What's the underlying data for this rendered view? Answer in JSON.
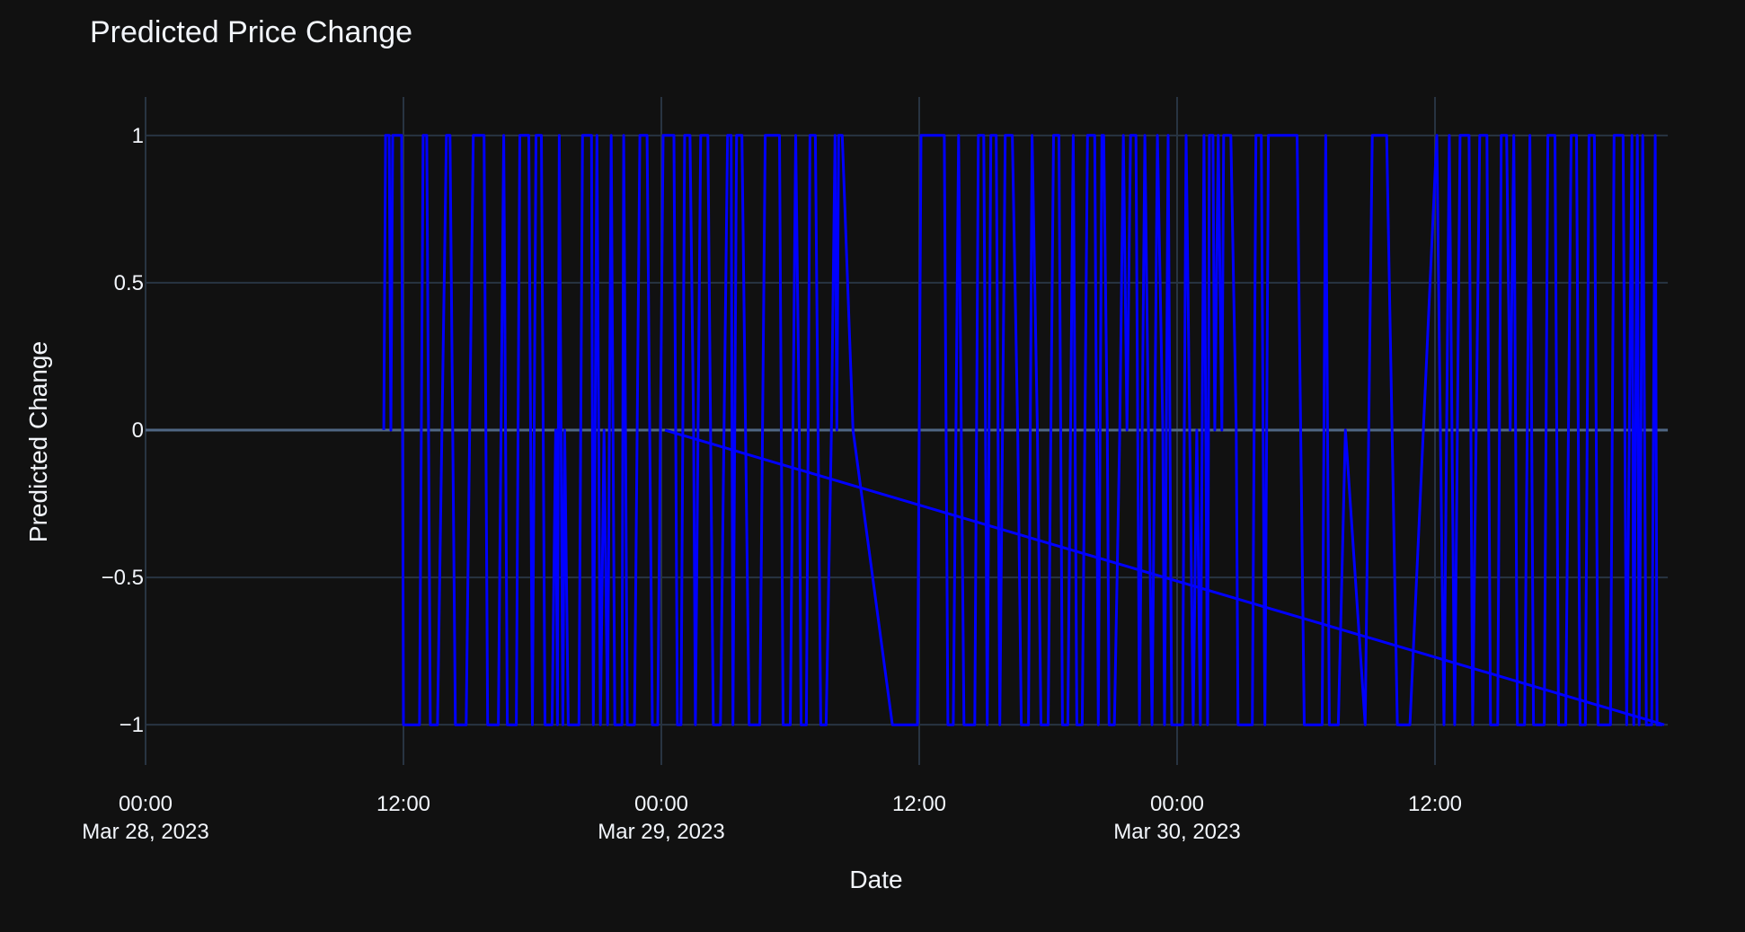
{
  "chart_data": {
    "type": "line",
    "title": "Predicted Price Change",
    "xlabel": "Date",
    "ylabel": "Predicted Change",
    "x_range": [
      "2023-03-28T00:00",
      "2023-03-30T22:45"
    ],
    "ylim": [
      -1.1,
      1.1
    ],
    "y_ticks": [
      {
        "value": 1,
        "label": "1"
      },
      {
        "value": 0.5,
        "label": "0.5"
      },
      {
        "value": 0,
        "label": "0"
      },
      {
        "value": -0.5,
        "label": "−0.5"
      },
      {
        "value": -1,
        "label": "−1"
      }
    ],
    "x_ticks": [
      {
        "value": "2023-03-28T00:00",
        "time": "00:00",
        "date": "Mar 28, 2023"
      },
      {
        "value": "2023-03-28T12:00",
        "time": "12:00",
        "date": ""
      },
      {
        "value": "2023-03-29T00:00",
        "time": "00:00",
        "date": "Mar 29, 2023"
      },
      {
        "value": "2023-03-29T12:00",
        "time": "12:00",
        "date": ""
      },
      {
        "value": "2023-03-30T00:00",
        "time": "00:00",
        "date": "Mar 30, 2023"
      },
      {
        "value": "2023-03-30T12:00",
        "time": "12:00",
        "date": ""
      }
    ],
    "grid": true,
    "series": [
      {
        "color": "#0000ff",
        "points": [
          [
            "2023-03-28T11:05",
            0
          ],
          [
            "2023-03-28T11:10",
            1
          ],
          [
            "2023-03-28T11:20",
            1
          ],
          [
            "2023-03-28T11:25",
            0
          ],
          [
            "2023-03-28T11:30",
            1
          ],
          [
            "2023-03-28T11:55",
            1
          ],
          [
            "2023-03-28T12:00",
            -1
          ],
          [
            "2023-03-28T12:45",
            -1
          ],
          [
            "2023-03-28T12:55",
            1
          ],
          [
            "2023-03-28T13:05",
            1
          ],
          [
            "2023-03-28T13:15",
            -1
          ],
          [
            "2023-03-28T13:35",
            -1
          ],
          [
            "2023-03-28T14:00",
            1
          ],
          [
            "2023-03-28T14:10",
            1
          ],
          [
            "2023-03-28T14:25",
            -1
          ],
          [
            "2023-03-28T14:55",
            -1
          ],
          [
            "2023-03-28T15:05",
            0
          ],
          [
            "2023-03-28T15:15",
            1
          ],
          [
            "2023-03-28T15:45",
            1
          ],
          [
            "2023-03-28T15:55",
            -1
          ],
          [
            "2023-03-28T16:25",
            -1
          ],
          [
            "2023-03-28T16:40",
            1
          ],
          [
            "2023-03-28T16:50",
            -1
          ],
          [
            "2023-03-28T17:15",
            -1
          ],
          [
            "2023-03-28T17:25",
            1
          ],
          [
            "2023-03-28T17:50",
            1
          ],
          [
            "2023-03-28T18:00",
            -1
          ],
          [
            "2023-03-28T18:10",
            1
          ],
          [
            "2023-03-28T18:25",
            1
          ],
          [
            "2023-03-28T18:35",
            -1
          ],
          [
            "2023-03-28T18:55",
            -1
          ],
          [
            "2023-03-28T19:05",
            0
          ],
          [
            "2023-03-28T19:10",
            -1
          ],
          [
            "2023-03-28T19:15",
            1
          ],
          [
            "2023-03-28T19:25",
            -1
          ],
          [
            "2023-03-28T19:30",
            0
          ],
          [
            "2023-03-28T19:40",
            -1
          ],
          [
            "2023-03-28T20:10",
            -1
          ],
          [
            "2023-03-28T20:20",
            1
          ],
          [
            "2023-03-28T20:45",
            1
          ],
          [
            "2023-03-28T20:50",
            -1
          ],
          [
            "2023-03-28T21:00",
            1
          ],
          [
            "2023-03-28T21:10",
            -1
          ],
          [
            "2023-03-28T21:20",
            0
          ],
          [
            "2023-03-28T21:30",
            -1
          ],
          [
            "2023-03-28T21:40",
            1
          ],
          [
            "2023-03-28T21:45",
            0
          ],
          [
            "2023-03-28T21:50",
            -1
          ],
          [
            "2023-03-28T22:10",
            -1
          ],
          [
            "2023-03-28T22:15",
            1
          ],
          [
            "2023-03-28T22:25",
            -1
          ],
          [
            "2023-03-28T22:45",
            -1
          ],
          [
            "2023-03-28T23:00",
            1
          ],
          [
            "2023-03-28T23:20",
            1
          ],
          [
            "2023-03-28T23:35",
            -1
          ],
          [
            "2023-03-28T23:50",
            -1
          ],
          [
            "2023-03-29T00:05",
            1
          ],
          [
            "2023-03-29T00:35",
            1
          ],
          [
            "2023-03-29T00:45",
            -1
          ],
          [
            "2023-03-29T00:55",
            -1
          ],
          [
            "2023-03-29T01:05",
            1
          ],
          [
            "2023-03-29T01:20",
            1
          ],
          [
            "2023-03-29T01:30",
            0
          ],
          [
            "2023-03-29T01:35",
            -1
          ],
          [
            "2023-03-29T01:50",
            1
          ],
          [
            "2023-03-29T02:10",
            1
          ],
          [
            "2023-03-29T02:25",
            -1
          ],
          [
            "2023-03-29T02:45",
            -1
          ],
          [
            "2023-03-29T03:05",
            1
          ],
          [
            "2023-03-29T03:15",
            1
          ],
          [
            "2023-03-29T03:20",
            -1
          ],
          [
            "2023-03-29T03:30",
            1
          ],
          [
            "2023-03-29T03:45",
            1
          ],
          [
            "2023-03-29T04:05",
            -1
          ],
          [
            "2023-03-29T04:35",
            -1
          ],
          [
            "2023-03-29T04:50",
            1
          ],
          [
            "2023-03-29T05:30",
            1
          ],
          [
            "2023-03-29T05:40",
            -1
          ],
          [
            "2023-03-29T06:00",
            -1
          ],
          [
            "2023-03-29T06:15",
            1
          ],
          [
            "2023-03-29T06:25",
            0
          ],
          [
            "2023-03-29T06:30",
            -1
          ],
          [
            "2023-03-29T06:45",
            -1
          ],
          [
            "2023-03-29T06:55",
            1
          ],
          [
            "2023-03-29T07:10",
            1
          ],
          [
            "2023-03-29T07:25",
            -1
          ],
          [
            "2023-03-29T07:40",
            -1
          ],
          [
            "2023-03-29T07:55",
            0
          ],
          [
            "2023-03-29T08:05",
            1
          ],
          [
            "2023-03-29T08:10",
            0
          ],
          [
            "2023-03-29T08:15",
            1
          ],
          [
            "2023-03-29T08:25",
            1
          ],
          [
            "2023-03-29T08:55",
            0
          ],
          [
            "2023-03-29T10:45",
            -1
          ],
          [
            "2023-03-29T11:55",
            -1
          ],
          [
            "2023-03-29T12:05",
            1
          ],
          [
            "2023-03-29T13:10",
            1
          ],
          [
            "2023-03-29T13:20",
            -1
          ],
          [
            "2023-03-29T13:35",
            -1
          ],
          [
            "2023-03-29T13:50",
            1
          ],
          [
            "2023-03-29T14:05",
            -1
          ],
          [
            "2023-03-29T14:35",
            -1
          ],
          [
            "2023-03-29T14:45",
            1
          ],
          [
            "2023-03-29T15:00",
            1
          ],
          [
            "2023-03-29T15:10",
            -1
          ],
          [
            "2023-03-29T15:20",
            1
          ],
          [
            "2023-03-29T15:35",
            1
          ],
          [
            "2023-03-29T15:45",
            -1
          ],
          [
            "2023-03-29T16:00",
            1
          ],
          [
            "2023-03-29T16:20",
            1
          ],
          [
            "2023-03-29T16:35",
            0
          ],
          [
            "2023-03-29T16:45",
            -1
          ],
          [
            "2023-03-29T17:05",
            -1
          ],
          [
            "2023-03-29T17:15",
            1
          ],
          [
            "2023-03-29T17:30",
            0
          ],
          [
            "2023-03-29T17:40",
            -1
          ],
          [
            "2023-03-29T18:00",
            -1
          ],
          [
            "2023-03-29T18:15",
            1
          ],
          [
            "2023-03-29T18:30",
            1
          ],
          [
            "2023-03-29T18:40",
            -1
          ],
          [
            "2023-03-29T18:55",
            -1
          ],
          [
            "2023-03-29T19:10",
            1
          ],
          [
            "2023-03-29T19:20",
            -1
          ],
          [
            "2023-03-29T19:35",
            -1
          ],
          [
            "2023-03-29T19:50",
            1
          ],
          [
            "2023-03-29T20:10",
            1
          ],
          [
            "2023-03-29T20:15",
            0
          ],
          [
            "2023-03-29T20:20",
            -1
          ],
          [
            "2023-03-29T20:30",
            1
          ],
          [
            "2023-03-29T20:35",
            1
          ],
          [
            "2023-03-29T20:45",
            0
          ],
          [
            "2023-03-29T20:50",
            -1
          ],
          [
            "2023-03-29T21:05",
            -1
          ],
          [
            "2023-03-29T21:20",
            0
          ],
          [
            "2023-03-29T21:30",
            1
          ],
          [
            "2023-03-29T21:40",
            0
          ],
          [
            "2023-03-29T21:50",
            1
          ],
          [
            "2023-03-29T22:05",
            1
          ],
          [
            "2023-03-29T22:15",
            -1
          ],
          [
            "2023-03-29T22:30",
            1
          ],
          [
            "2023-03-29T22:40",
            0
          ],
          [
            "2023-03-29T22:50",
            -1
          ],
          [
            "2023-03-29T23:05",
            1
          ],
          [
            "2023-03-29T23:20",
            0
          ],
          [
            "2023-03-29T23:25",
            -1
          ],
          [
            "2023-03-29T23:35",
            1
          ],
          [
            "2023-03-29T23:45",
            -1
          ],
          [
            "2023-03-30T00:15",
            -1
          ],
          [
            "2023-03-30T00:25",
            1
          ],
          [
            "2023-03-30T00:35",
            0
          ],
          [
            "2023-03-30T00:45",
            -1
          ],
          [
            "2023-03-30T00:55",
            0
          ],
          [
            "2023-03-30T01:05",
            -1
          ],
          [
            "2023-03-30T01:15",
            1
          ],
          [
            "2023-03-30T01:20",
            0
          ],
          [
            "2023-03-30T01:25",
            -1
          ],
          [
            "2023-03-30T01:30",
            1
          ],
          [
            "2023-03-30T01:40",
            1
          ],
          [
            "2023-03-30T01:45",
            0
          ],
          [
            "2023-03-30T01:55",
            1
          ],
          [
            "2023-03-30T02:05",
            0
          ],
          [
            "2023-03-30T02:10",
            1
          ],
          [
            "2023-03-30T02:30",
            1
          ],
          [
            "2023-03-30T02:45",
            0
          ],
          [
            "2023-03-30T02:50",
            -1
          ],
          [
            "2023-03-30T03:30",
            -1
          ],
          [
            "2023-03-30T03:40",
            1
          ],
          [
            "2023-03-30T03:55",
            1
          ],
          [
            "2023-03-30T04:05",
            -1
          ],
          [
            "2023-03-30T04:15",
            1
          ],
          [
            "2023-03-30T04:45",
            1
          ],
          [
            "2023-03-30T05:05",
            1
          ],
          [
            "2023-03-30T05:35",
            1
          ],
          [
            "2023-03-30T05:45",
            0
          ],
          [
            "2023-03-30T05:55",
            -1
          ],
          [
            "2023-03-30T06:45",
            -1
          ],
          [
            "2023-03-30T06:55",
            1
          ],
          [
            "2023-03-30T07:05",
            -1
          ],
          [
            "2023-03-30T07:30",
            -1
          ],
          [
            "2023-03-30T07:50",
            0
          ],
          [
            "2023-03-30T08:45",
            -1
          ],
          [
            "2023-03-30T09:05",
            1
          ],
          [
            "2023-03-30T09:45",
            1
          ],
          [
            "2023-03-30T10:00",
            0
          ],
          [
            "2023-03-30T10:15",
            -1
          ],
          [
            "2023-03-30T10:50",
            -1
          ],
          [
            "2023-03-30T12:05",
            1
          ],
          [
            "2023-03-30T12:25",
            -1
          ],
          [
            "2023-03-30T12:40",
            1
          ],
          [
            "2023-03-30T12:55",
            -1
          ],
          [
            "2023-03-30T13:10",
            1
          ],
          [
            "2023-03-30T13:35",
            1
          ],
          [
            "2023-03-30T13:45",
            -1
          ],
          [
            "2023-03-30T14:05",
            1
          ],
          [
            "2023-03-30T14:25",
            1
          ],
          [
            "2023-03-30T14:35",
            -1
          ],
          [
            "2023-03-30T14:55",
            -1
          ],
          [
            "2023-03-30T15:05",
            1
          ],
          [
            "2023-03-30T15:20",
            1
          ],
          [
            "2023-03-30T15:30",
            0
          ],
          [
            "2023-03-30T15:40",
            1
          ],
          [
            "2023-03-30T15:50",
            -1
          ],
          [
            "2023-03-30T16:10",
            -1
          ],
          [
            "2023-03-30T16:25",
            1
          ],
          [
            "2023-03-30T16:35",
            -1
          ],
          [
            "2023-03-30T17:05",
            -1
          ],
          [
            "2023-03-30T17:15",
            1
          ],
          [
            "2023-03-30T17:35",
            1
          ],
          [
            "2023-03-30T17:45",
            -1
          ],
          [
            "2023-03-30T18:05",
            -1
          ],
          [
            "2023-03-30T18:20",
            1
          ],
          [
            "2023-03-30T18:35",
            1
          ],
          [
            "2023-03-30T18:45",
            -1
          ],
          [
            "2023-03-30T19:00",
            -1
          ],
          [
            "2023-03-30T19:10",
            1
          ],
          [
            "2023-03-30T19:25",
            1
          ],
          [
            "2023-03-30T19:35",
            -1
          ],
          [
            "2023-03-30T20:10",
            -1
          ],
          [
            "2023-03-30T20:20",
            1
          ],
          [
            "2023-03-30T20:45",
            1
          ],
          [
            "2023-03-30T20:55",
            -1
          ],
          [
            "2023-03-30T21:10",
            1
          ],
          [
            "2023-03-30T21:15",
            -1
          ],
          [
            "2023-03-30T21:25",
            1
          ],
          [
            "2023-03-30T21:30",
            -1
          ],
          [
            "2023-03-30T21:40",
            1
          ],
          [
            "2023-03-30T21:50",
            -1
          ],
          [
            "2023-03-30T22:05",
            -1
          ],
          [
            "2023-03-30T22:15",
            1
          ],
          [
            "2023-03-30T22:20",
            -1
          ],
          [
            "2023-03-30T22:35",
            -1
          ]
        ]
      },
      {
        "color": "#0000ff",
        "points": [
          [
            "2023-03-29T00:10",
            0
          ],
          [
            "2023-03-30T22:40",
            -1
          ]
        ]
      }
    ]
  }
}
